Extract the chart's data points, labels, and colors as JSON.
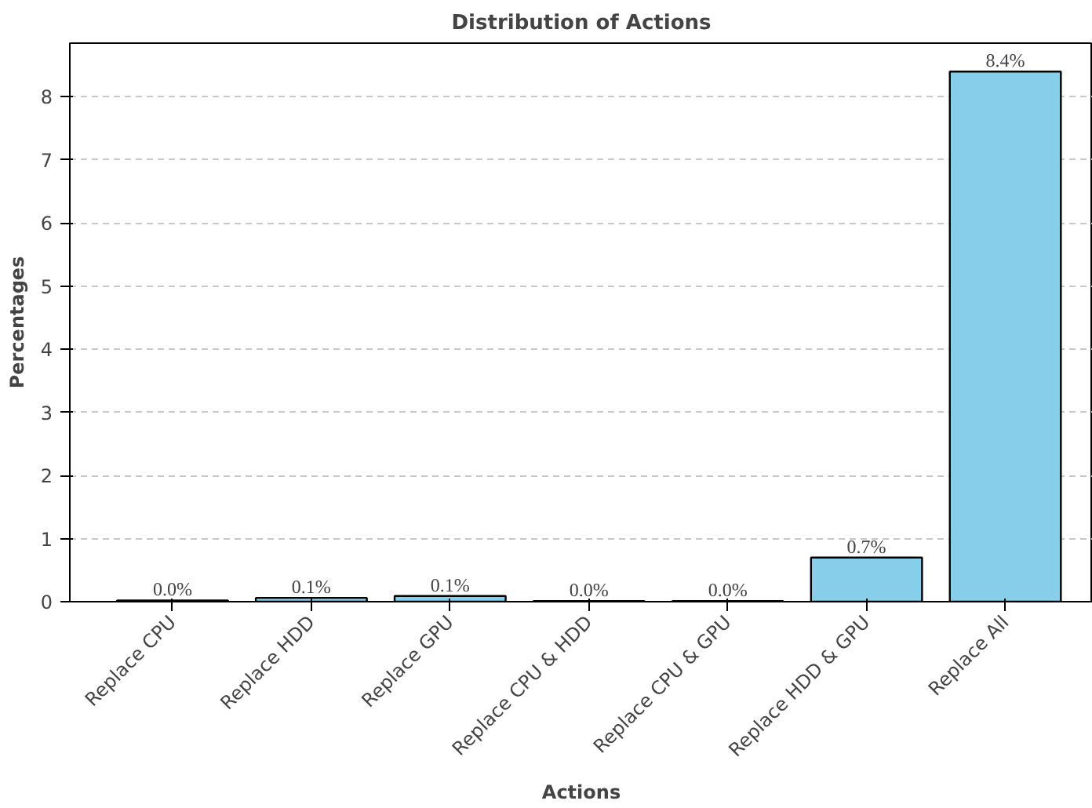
{
  "chart_data": {
    "type": "bar",
    "title": "Distribution of Actions",
    "xlabel": "Actions",
    "ylabel": "Percentages",
    "categories": [
      "Replace CPU",
      "Replace HDD",
      "Replace GPU",
      "Replace CPU & HDD",
      "Replace CPU & GPU",
      "Replace HDD & GPU",
      "Replace All"
    ],
    "values": [
      0.02,
      0.06,
      0.09,
      0.01,
      0.01,
      0.7,
      8.4
    ],
    "value_labels": [
      "0.0%",
      "0.1%",
      "0.1%",
      "0.0%",
      "0.0%",
      "0.7%",
      "8.4%"
    ],
    "color": "#87ceeb",
    "ylim": [
      0,
      8.85
    ],
    "yticks": [
      0,
      1,
      2,
      3,
      4,
      5,
      6,
      7,
      8
    ],
    "grid": "y"
  }
}
